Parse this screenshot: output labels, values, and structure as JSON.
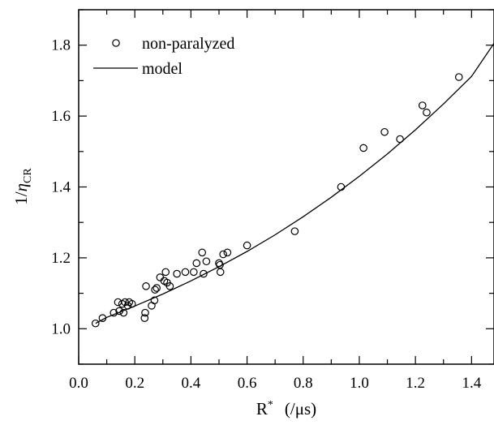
{
  "chart_data": {
    "type": "scatter",
    "xlabel": {
      "main": "R",
      "sup": "*",
      "unit": "(/μs)"
    },
    "ylabel": {
      "prefix": "1/",
      "symbol": "η",
      "sub": "CR"
    },
    "xlim": [
      0.0,
      1.48
    ],
    "ylim": [
      0.9,
      1.9
    ],
    "xticks": [
      0.0,
      0.2,
      0.4,
      0.6,
      0.8,
      1.0,
      1.2,
      1.4
    ],
    "xtick_labels": [
      "0.0",
      "0.2",
      "0.4",
      "0.6",
      "0.8",
      "1.0",
      "1.2",
      "1.4"
    ],
    "yticks": [
      1.0,
      1.2,
      1.4,
      1.6,
      1.8
    ],
    "ytick_labels": [
      "1.0",
      "1.2",
      "1.4",
      "1.6",
      "1.8"
    ],
    "grid": false,
    "legend_position": "top-left",
    "series": [
      {
        "name": "non-paralyzed",
        "marker": "open-circle",
        "color": "#000000",
        "points": [
          [
            0.06,
            1.015
          ],
          [
            0.085,
            1.03
          ],
          [
            0.125,
            1.045
          ],
          [
            0.14,
            1.075
          ],
          [
            0.145,
            1.05
          ],
          [
            0.155,
            1.07
          ],
          [
            0.16,
            1.045
          ],
          [
            0.165,
            1.075
          ],
          [
            0.175,
            1.065
          ],
          [
            0.18,
            1.075
          ],
          [
            0.19,
            1.07
          ],
          [
            0.235,
            1.03
          ],
          [
            0.237,
            1.045
          ],
          [
            0.24,
            1.12
          ],
          [
            0.26,
            1.065
          ],
          [
            0.27,
            1.08
          ],
          [
            0.272,
            1.11
          ],
          [
            0.278,
            1.115
          ],
          [
            0.29,
            1.145
          ],
          [
            0.305,
            1.135
          ],
          [
            0.31,
            1.16
          ],
          [
            0.315,
            1.13
          ],
          [
            0.325,
            1.12
          ],
          [
            0.35,
            1.155
          ],
          [
            0.38,
            1.16
          ],
          [
            0.41,
            1.16
          ],
          [
            0.42,
            1.185
          ],
          [
            0.44,
            1.215
          ],
          [
            0.445,
            1.155
          ],
          [
            0.455,
            1.19
          ],
          [
            0.5,
            1.185
          ],
          [
            0.503,
            1.18
          ],
          [
            0.505,
            1.16
          ],
          [
            0.515,
            1.21
          ],
          [
            0.53,
            1.215
          ],
          [
            0.6,
            1.235
          ],
          [
            0.77,
            1.275
          ],
          [
            0.935,
            1.4
          ],
          [
            1.015,
            1.51
          ],
          [
            1.09,
            1.555
          ],
          [
            1.145,
            1.535
          ],
          [
            1.225,
            1.63
          ],
          [
            1.24,
            1.61
          ],
          [
            1.355,
            1.71
          ]
        ]
      },
      {
        "name": "model",
        "line": "solid",
        "color": "#000000",
        "x": [
          0.06,
          0.1,
          0.2,
          0.3,
          0.4,
          0.5,
          0.6,
          0.7,
          0.8,
          0.9,
          1.0,
          1.1,
          1.2,
          1.3,
          1.4,
          1.48
        ],
        "y": [
          1.015,
          1.032,
          1.064,
          1.098,
          1.135,
          1.175,
          1.218,
          1.265,
          1.316,
          1.371,
          1.43,
          1.493,
          1.561,
          1.634,
          1.712,
          1.805
        ]
      }
    ]
  }
}
